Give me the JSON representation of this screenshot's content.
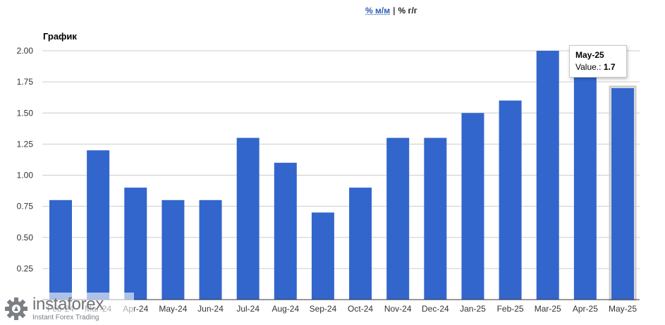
{
  "switcher": {
    "mm_label": "% м/м",
    "separator": "|",
    "yy_label": "% г/г"
  },
  "chart_title": "График",
  "tooltip": {
    "title": "May-25",
    "value_label": "Value.:",
    "value": "1.7"
  },
  "logo": {
    "name": "instaforex",
    "tagline": "Instant Forex Trading"
  },
  "colors": {
    "bar": "#3366cc",
    "grid": "#cccccc",
    "hover_border": "#cccccc"
  },
  "chart_data": {
    "type": "bar",
    "title": "График",
    "categories": [
      "Feb-24",
      "Mar-24",
      "Apr-24",
      "May-24",
      "Jun-24",
      "Jul-24",
      "Aug-24",
      "Sep-24",
      "Oct-24",
      "Nov-24",
      "Dec-24",
      "Jan-25",
      "Feb-25",
      "Mar-25",
      "Apr-25",
      "May-25"
    ],
    "values": [
      0.8,
      1.2,
      0.9,
      0.8,
      0.8,
      1.3,
      1.1,
      0.7,
      0.9,
      1.3,
      1.3,
      1.5,
      1.6,
      2.0,
      1.8,
      1.7
    ],
    "yticks": [
      "0.25",
      "0.50",
      "0.75",
      "1.00",
      "1.25",
      "1.50",
      "1.75",
      "2.00"
    ],
    "ylim": [
      0,
      2.0
    ],
    "grid": true,
    "highlighted": "May-25"
  }
}
